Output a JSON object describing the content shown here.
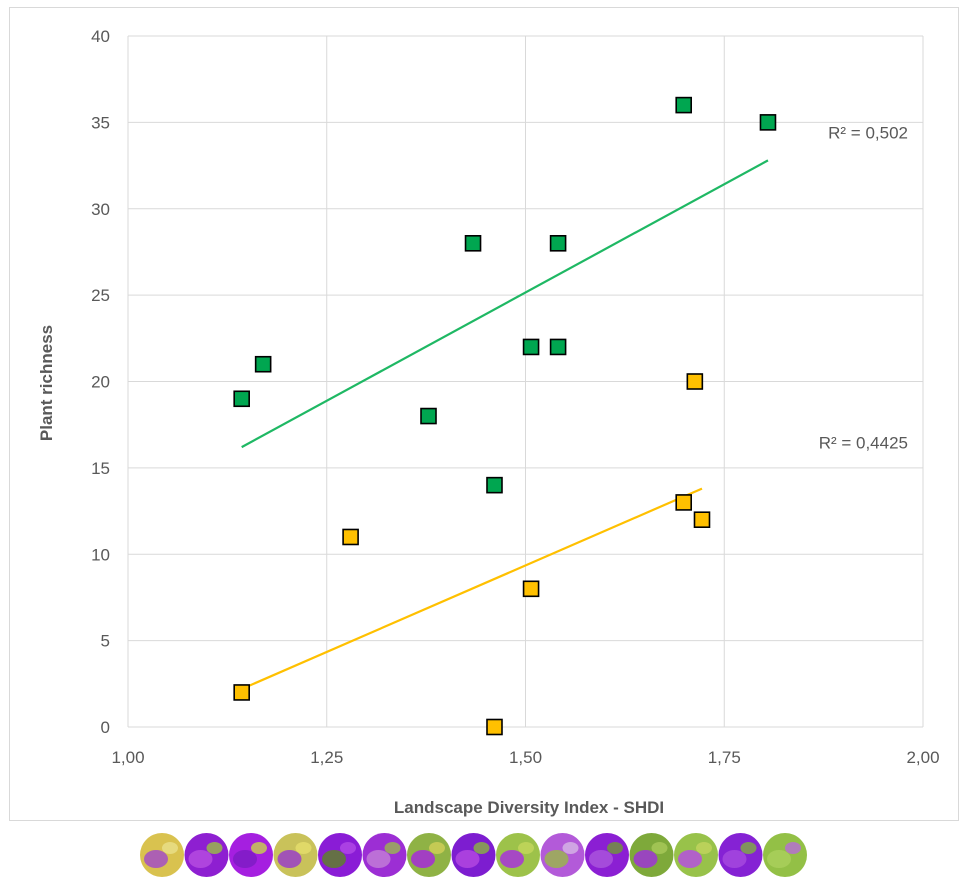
{
  "chart_data": {
    "type": "scatter",
    "title": "",
    "xlabel": "Landscape Diversity Index - SHDI",
    "ylabel": "Plant richness",
    "xlim": [
      1.0,
      2.0
    ],
    "ylim": [
      0,
      40
    ],
    "x_ticks": [
      1.0,
      1.25,
      1.5,
      1.75,
      2.0
    ],
    "x_tick_labels": [
      "1,00",
      "1,25",
      "1,50",
      "1,75",
      "2,00"
    ],
    "y_ticks": [
      0,
      5,
      10,
      15,
      20,
      25,
      30,
      35,
      40
    ],
    "y_tick_labels": [
      "0",
      "5",
      "10",
      "15",
      "20",
      "25",
      "30",
      "35",
      "40"
    ],
    "grid": true,
    "legend": "none",
    "series": [
      {
        "color": "#00a650",
        "line_color": "#1fb864",
        "points": [
          {
            "x": 1.143,
            "y": 19
          },
          {
            "x": 1.17,
            "y": 21
          },
          {
            "x": 1.378,
            "y": 18
          },
          {
            "x": 1.434,
            "y": 28
          },
          {
            "x": 1.461,
            "y": 14
          },
          {
            "x": 1.507,
            "y": 22
          },
          {
            "x": 1.541,
            "y": 22
          },
          {
            "x": 1.541,
            "y": 28
          },
          {
            "x": 1.699,
            "y": 36
          },
          {
            "x": 1.805,
            "y": 35
          }
        ],
        "trendline": {
          "x0": 1.143,
          "y0": 16.2,
          "x1": 1.805,
          "y1": 32.8
        },
        "r2_label": "R² = 0,502"
      },
      {
        "color": "#ffc000",
        "line_color": "#ffc000",
        "points": [
          {
            "x": 1.143,
            "y": 2
          },
          {
            "x": 1.28,
            "y": 11
          },
          {
            "x": 1.461,
            "y": 0
          },
          {
            "x": 1.507,
            "y": 8
          },
          {
            "x": 1.699,
            "y": 13
          },
          {
            "x": 1.713,
            "y": 20
          },
          {
            "x": 1.722,
            "y": 12
          }
        ],
        "trendline": {
          "x0": 1.143,
          "y0": 2.2,
          "x1": 1.722,
          "y1": 13.8
        },
        "r2_label": "R² = 0,4425"
      }
    ],
    "thumbnails": [
      {
        "colors": [
          "#d9c24f",
          "#a34fc4",
          "#e8e08a"
        ]
      },
      {
        "colors": [
          "#8e1fd1",
          "#b54be0",
          "#9ac044"
        ]
      },
      {
        "colors": [
          "#a51fe0",
          "#7e1cc4",
          "#c9d64a"
        ]
      },
      {
        "colors": [
          "#c9c25a",
          "#9a3fc7",
          "#e6df6b"
        ]
      },
      {
        "colors": [
          "#8a1cd6",
          "#5e7f2d",
          "#b14ae6"
        ]
      },
      {
        "colors": [
          "#9c2ed4",
          "#c27ad7",
          "#9ab84e"
        ]
      },
      {
        "colors": [
          "#8fb245",
          "#a62ad8",
          "#d1cf57"
        ]
      },
      {
        "colors": [
          "#7d1dd0",
          "#b146e0",
          "#89b63e"
        ]
      },
      {
        "colors": [
          "#9dc24a",
          "#a834d9",
          "#c4d75b"
        ]
      },
      {
        "colors": [
          "#b35ad9",
          "#9ab44f",
          "#d6b6e5"
        ]
      },
      {
        "colors": [
          "#8b1fd3",
          "#a953dc",
          "#6f9a35"
        ]
      },
      {
        "colors": [
          "#7ea93a",
          "#9e35d6",
          "#a9c95a"
        ]
      },
      {
        "colors": [
          "#98c24a",
          "#b550de",
          "#c3d45e"
        ]
      },
      {
        "colors": [
          "#8522d4",
          "#a548de",
          "#7fb03e"
        ]
      },
      {
        "colors": [
          "#93c046",
          "#a9cf5c",
          "#b86ad8"
        ]
      }
    ]
  }
}
